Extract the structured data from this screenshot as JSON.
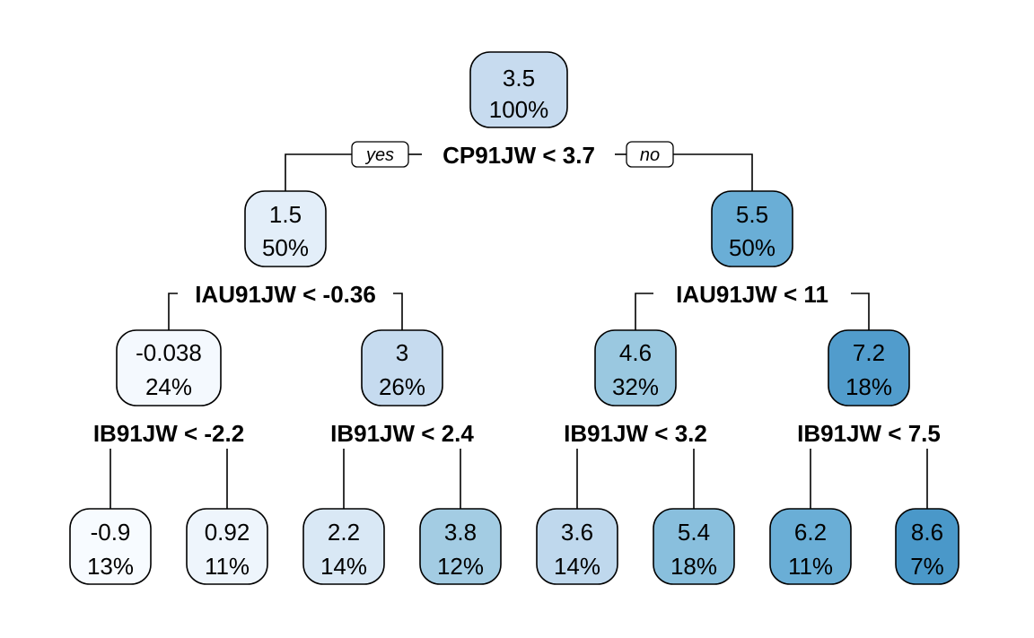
{
  "tree": {
    "root": {
      "value": "3.5",
      "pct": "100%",
      "color": "#c7dbef"
    },
    "split_root": {
      "label": "CP91JW < 3.7",
      "yes": "yes",
      "no": "no"
    },
    "left": {
      "value": "1.5",
      "pct": "50%",
      "color": "#e3eef9"
    },
    "right": {
      "value": "5.5",
      "pct": "50%",
      "color": "#6aaed6"
    },
    "split_left": {
      "label": "IAU91JW < -0.36"
    },
    "split_right": {
      "label": "IAU91JW < 11"
    },
    "ll": {
      "value": "-0.038",
      "pct": "24%",
      "color": "#f4f9fe"
    },
    "lr": {
      "value": "3",
      "pct": "26%",
      "color": "#c6dbef"
    },
    "rl": {
      "value": "4.6",
      "pct": "32%",
      "color": "#9ac8e0"
    },
    "rr": {
      "value": "7.2",
      "pct": "18%",
      "color": "#519ccc"
    },
    "split_ll": {
      "label": "IB91JW < -2.2"
    },
    "split_lr": {
      "label": "IB91JW < 2.4"
    },
    "split_rl": {
      "label": "IB91JW < 3.2"
    },
    "split_rr": {
      "label": "IB91JW < 7.5"
    },
    "leaves": [
      {
        "value": "-0.9",
        "pct": "13%",
        "color": "#f7fbff"
      },
      {
        "value": "0.92",
        "pct": "11%",
        "color": "#eef5fc"
      },
      {
        "value": "2.2",
        "pct": "14%",
        "color": "#d9e8f5"
      },
      {
        "value": "3.8",
        "pct": "12%",
        "color": "#a3cce3"
      },
      {
        "value": "3.6",
        "pct": "14%",
        "color": "#bfd8ed"
      },
      {
        "value": "5.4",
        "pct": "18%",
        "color": "#89bfdd"
      },
      {
        "value": "6.2",
        "pct": "11%",
        "color": "#6aaed6"
      },
      {
        "value": "8.6",
        "pct": "7%",
        "color": "#4a98c9"
      }
    ]
  }
}
